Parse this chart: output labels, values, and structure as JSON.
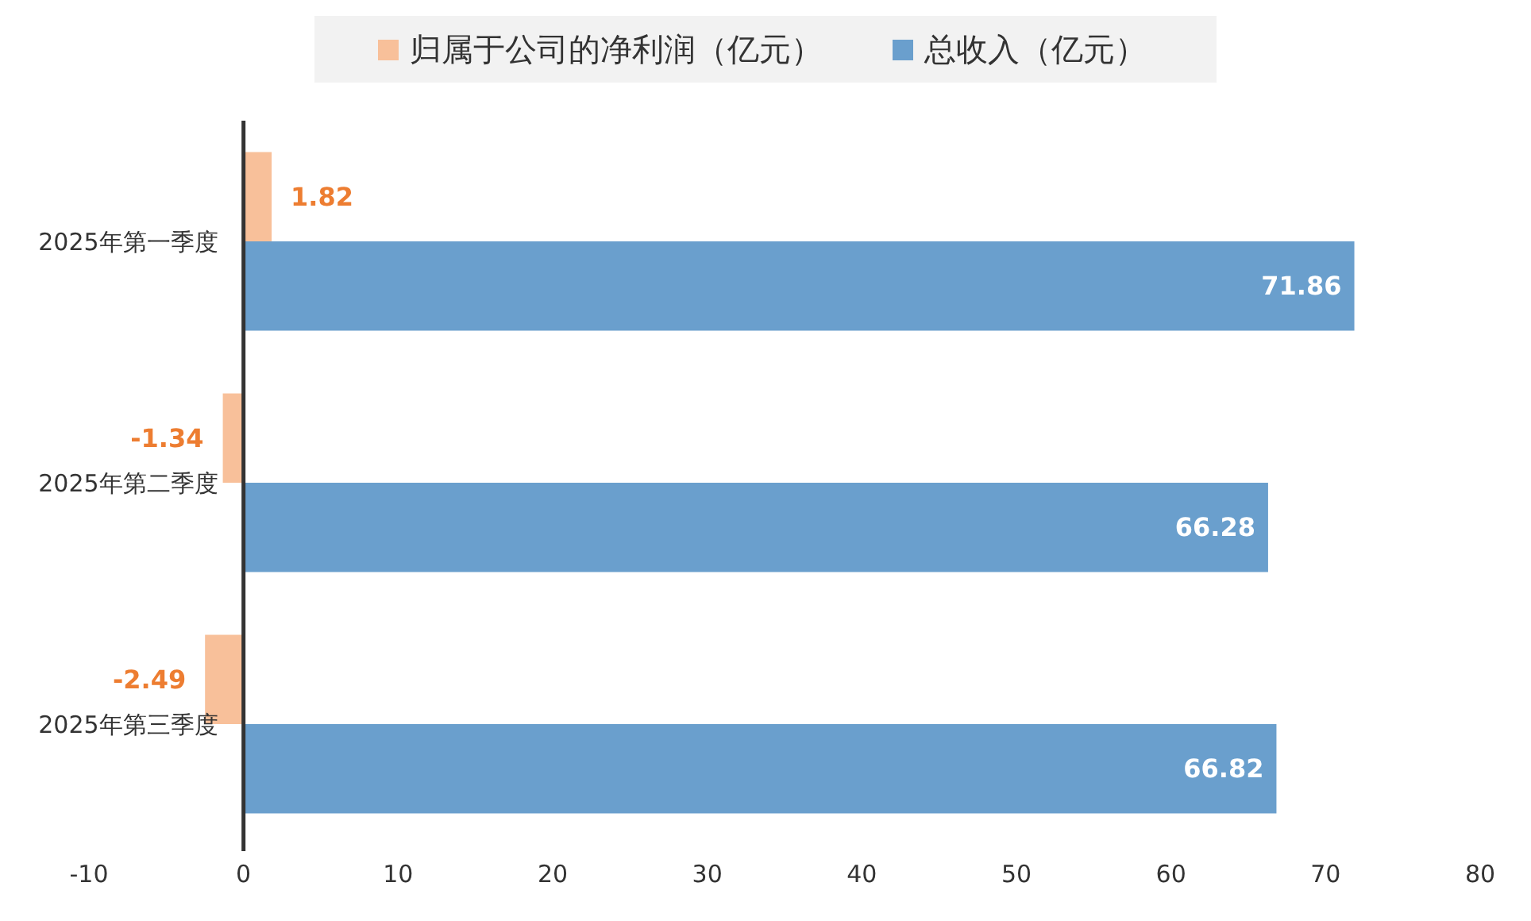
{
  "chart_data": {
    "type": "bar",
    "orientation": "horizontal",
    "categories": [
      "2025年第一季度",
      "2025年第二季度",
      "2025年第三季度"
    ],
    "series": [
      {
        "name": "归属于公司的净利润（亿元）",
        "color": "#f8c09a",
        "values": [
          1.82,
          -1.34,
          -2.49
        ]
      },
      {
        "name": "总收入（亿元）",
        "color": "#6a9fcd",
        "values": [
          71.86,
          66.28,
          66.82
        ]
      }
    ],
    "xlim": [
      -10,
      80
    ],
    "xticks": [
      -10,
      0,
      10,
      20,
      30,
      40,
      50,
      60,
      70,
      80
    ],
    "data_labels": true,
    "grid": false,
    "legend": "top"
  }
}
